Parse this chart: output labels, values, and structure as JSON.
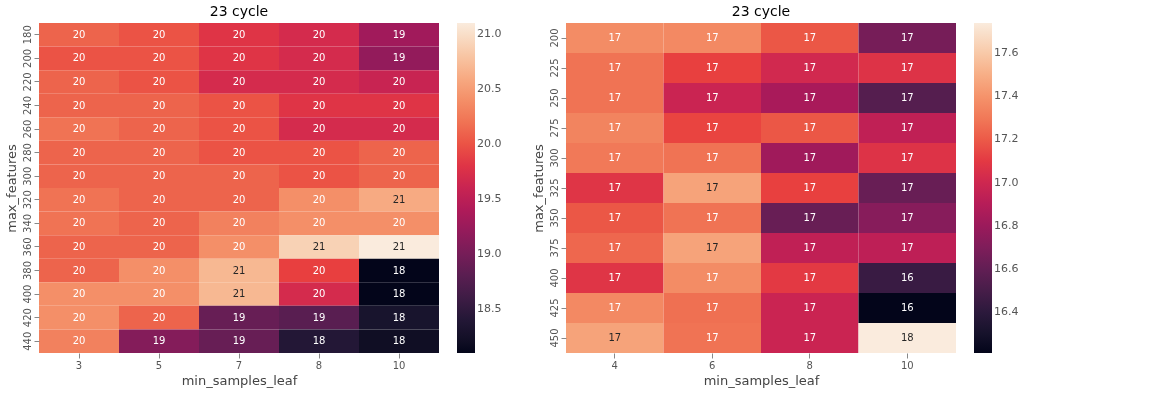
{
  "chart_data": [
    {
      "type": "heatmap",
      "title": "23 cycle",
      "xlabel": "min_samples_leaf",
      "ylabel": "max_features",
      "categories": [
        "3",
        "5",
        "7",
        "8",
        "10"
      ],
      "y_categories": [
        "180",
        "200",
        "220",
        "240",
        "260",
        "280",
        "300",
        "320",
        "340",
        "360",
        "380",
        "400",
        "420",
        "440"
      ],
      "cells": [
        [
          20.1,
          20.0,
          19.8,
          19.7,
          19.3
        ],
        [
          20.0,
          20.0,
          19.8,
          19.7,
          19.2
        ],
        [
          20.1,
          20.0,
          19.7,
          19.7,
          19.6
        ],
        [
          20.1,
          20.1,
          20.0,
          19.8,
          19.8
        ],
        [
          20.2,
          20.1,
          20.0,
          19.7,
          19.7
        ],
        [
          20.1,
          20.1,
          20.0,
          20.0,
          20.1
        ],
        [
          20.1,
          20.1,
          20.1,
          20.0,
          20.1
        ],
        [
          20.2,
          20.1,
          20.1,
          20.4,
          20.6
        ],
        [
          20.2,
          20.1,
          20.3,
          20.4,
          20.4
        ],
        [
          20.1,
          20.1,
          20.4,
          20.9,
          21.1
        ],
        [
          20.1,
          20.4,
          20.7,
          19.9,
          18.1
        ],
        [
          20.4,
          20.4,
          20.7,
          19.7,
          18.1
        ],
        [
          20.4,
          20.1,
          18.9,
          18.8,
          18.3
        ],
        [
          20.3,
          19.1,
          18.9,
          18.4,
          18.2
        ]
      ],
      "cell_labels": [
        [
          "20",
          "20",
          "20",
          "20",
          "19"
        ],
        [
          "20",
          "20",
          "20",
          "20",
          "19"
        ],
        [
          "20",
          "20",
          "20",
          "20",
          "20"
        ],
        [
          "20",
          "20",
          "20",
          "20",
          "20"
        ],
        [
          "20",
          "20",
          "20",
          "20",
          "20"
        ],
        [
          "20",
          "20",
          "20",
          "20",
          "20"
        ],
        [
          "20",
          "20",
          "20",
          "20",
          "20"
        ],
        [
          "20",
          "20",
          "20",
          "20",
          "21"
        ],
        [
          "20",
          "20",
          "20",
          "20",
          "20"
        ],
        [
          "20",
          "20",
          "20",
          "21",
          "21"
        ],
        [
          "20",
          "20",
          "21",
          "20",
          "18"
        ],
        [
          "20",
          "20",
          "21",
          "20",
          "18"
        ],
        [
          "20",
          "20",
          "19",
          "19",
          "18"
        ],
        [
          "20",
          "19",
          "19",
          "18",
          "18"
        ]
      ],
      "clim": [
        18.1,
        21.1
      ],
      "cticks": [
        18.5,
        {
          "value": 19,
          "label": "19.0"
        },
        19.5,
        {
          "value": 20,
          "label": "20.0"
        },
        20.5,
        {
          "value": 21,
          "label": "21.0"
        }
      ]
    },
    {
      "type": "heatmap",
      "title": "23 cycle",
      "xlabel": "min_samples_leaf",
      "ylabel": "max_features",
      "categories": [
        "4",
        "6",
        "8",
        "10"
      ],
      "y_categories": [
        "200",
        "225",
        "250",
        "275",
        "300",
        "325",
        "350",
        "375",
        "400",
        "425",
        "450"
      ],
      "cells": [
        [
          17.37,
          17.36,
          17.19,
          16.67
        ],
        [
          17.28,
          17.13,
          17.01,
          17.07
        ],
        [
          17.28,
          16.98,
          16.85,
          16.55
        ],
        [
          17.34,
          17.14,
          17.19,
          16.94
        ],
        [
          17.3,
          17.28,
          16.82,
          17.07
        ],
        [
          17.08,
          17.46,
          17.13,
          16.62
        ],
        [
          17.19,
          17.28,
          16.62,
          16.73
        ],
        [
          17.24,
          17.46,
          16.94,
          16.93
        ],
        [
          17.08,
          17.37,
          17.1,
          16.45
        ],
        [
          17.36,
          17.27,
          16.98,
          16.21
        ],
        [
          17.46,
          17.28,
          16.98,
          17.74
        ]
      ],
      "cell_labels": [
        [
          "17",
          "17",
          "17",
          "17"
        ],
        [
          "17",
          "17",
          "17",
          "17"
        ],
        [
          "17",
          "17",
          "17",
          "17"
        ],
        [
          "17",
          "17",
          "17",
          "17"
        ],
        [
          "17",
          "17",
          "17",
          "17"
        ],
        [
          "17",
          "17",
          "17",
          "17"
        ],
        [
          "17",
          "17",
          "17",
          "17"
        ],
        [
          "17",
          "17",
          "17",
          "17"
        ],
        [
          "17",
          "17",
          "17",
          "16"
        ],
        [
          "17",
          "17",
          "17",
          "16"
        ],
        [
          "17",
          "17",
          "17",
          "18"
        ]
      ],
      "clim": [
        16.21,
        17.74
      ],
      "cticks": [
        16.4,
        16.6,
        16.8,
        {
          "value": 17,
          "label": "17.0"
        },
        17.2,
        17.4,
        17.6
      ]
    }
  ]
}
